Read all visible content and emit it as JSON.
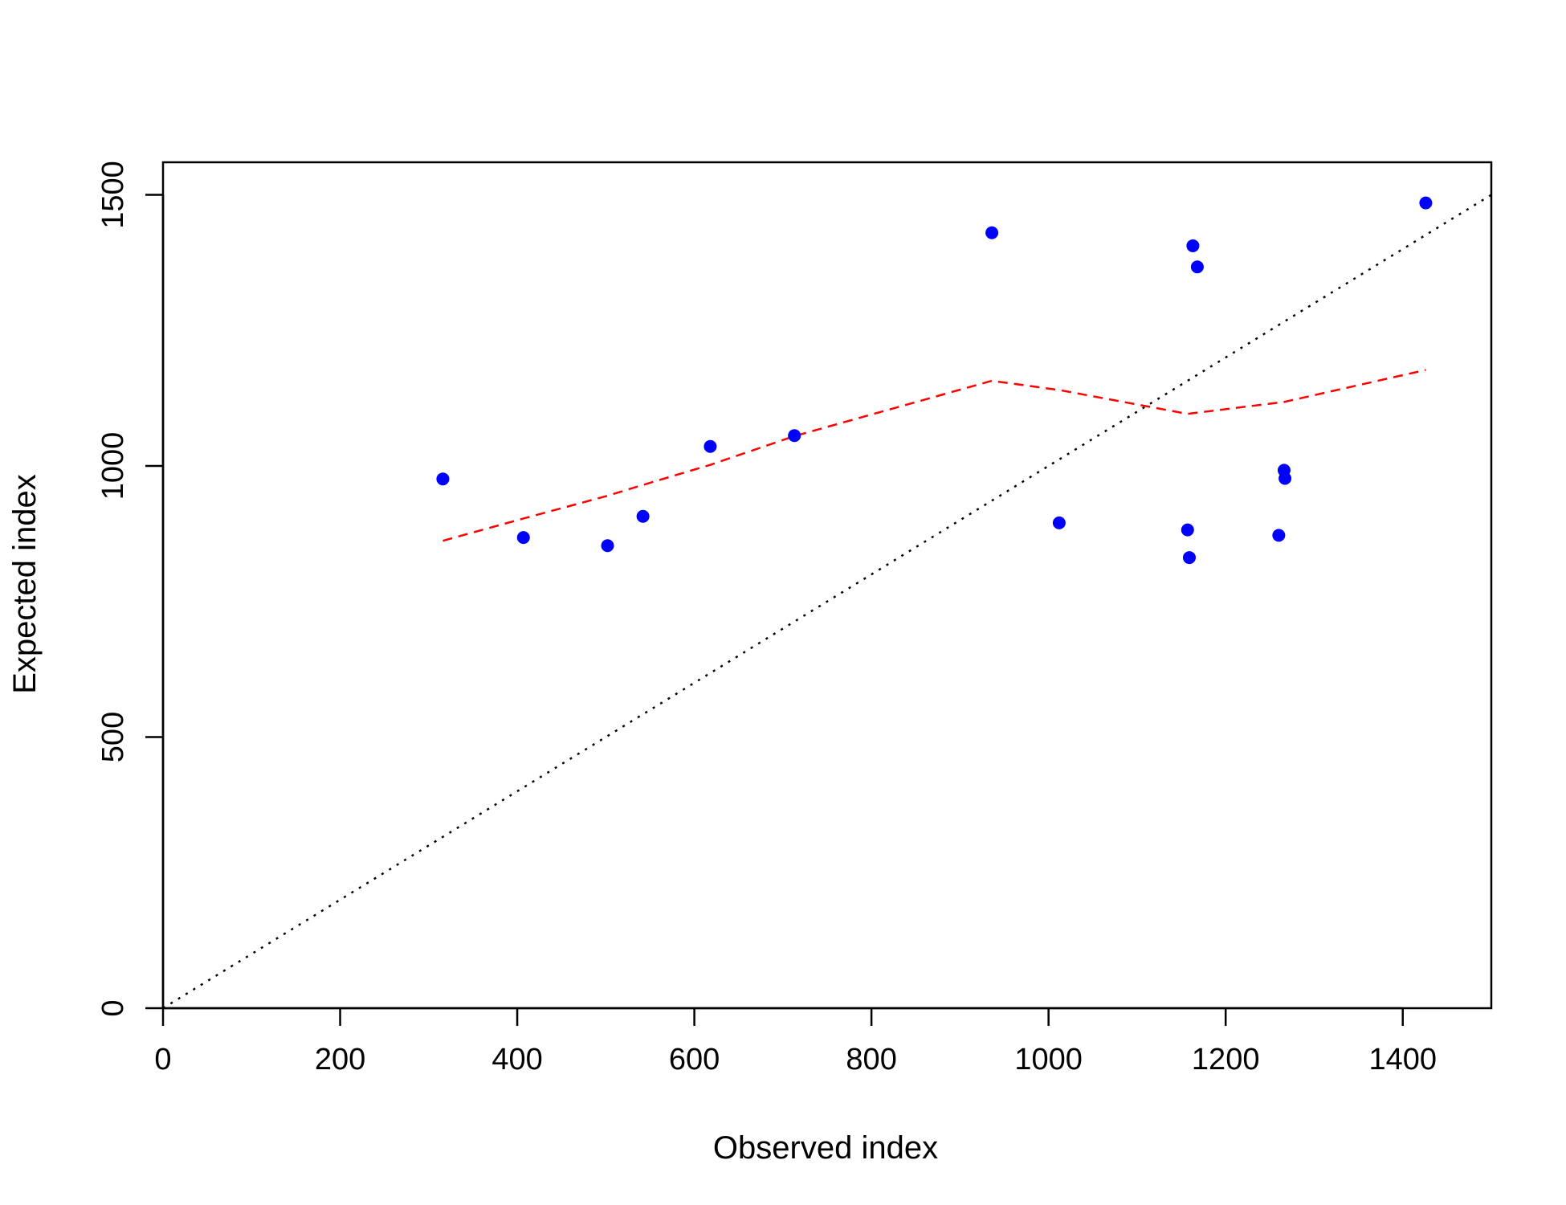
{
  "chart_data": {
    "type": "scatter",
    "title": "",
    "xlabel": "Observed index",
    "ylabel": "Expected index",
    "xlim": [
      0,
      1500
    ],
    "ylim": [
      0,
      1560
    ],
    "x_ticks": [
      0,
      200,
      400,
      600,
      800,
      1000,
      1200,
      1400
    ],
    "y_ticks": [
      0,
      500,
      1000,
      1500
    ],
    "grid": false,
    "colors": {
      "points": "#0000ff",
      "trend": "#ff0000",
      "reference": "#000000"
    },
    "points": [
      {
        "x": 316,
        "y": 976
      },
      {
        "x": 407,
        "y": 868
      },
      {
        "x": 502,
        "y": 853
      },
      {
        "x": 542,
        "y": 907
      },
      {
        "x": 618,
        "y": 1036
      },
      {
        "x": 713,
        "y": 1056
      },
      {
        "x": 936,
        "y": 1430
      },
      {
        "x": 1012,
        "y": 895
      },
      {
        "x": 1157,
        "y": 882
      },
      {
        "x": 1159,
        "y": 831
      },
      {
        "x": 1163,
        "y": 1406
      },
      {
        "x": 1168,
        "y": 1367
      },
      {
        "x": 1260,
        "y": 872
      },
      {
        "x": 1266,
        "y": 992
      },
      {
        "x": 1267,
        "y": 977
      },
      {
        "x": 1426,
        "y": 1485
      }
    ],
    "trend_line": {
      "style": "dashed",
      "x": [
        316,
        407,
        502,
        542,
        618,
        713,
        936,
        1012,
        1157,
        1266,
        1426
      ],
      "y": [
        862,
        903,
        945,
        965,
        1002,
        1055,
        1157,
        1140,
        1096,
        1118,
        1177
      ]
    },
    "reference_line": {
      "style": "dotted",
      "x": [
        0,
        1500
      ],
      "y": [
        0,
        1500
      ]
    }
  }
}
